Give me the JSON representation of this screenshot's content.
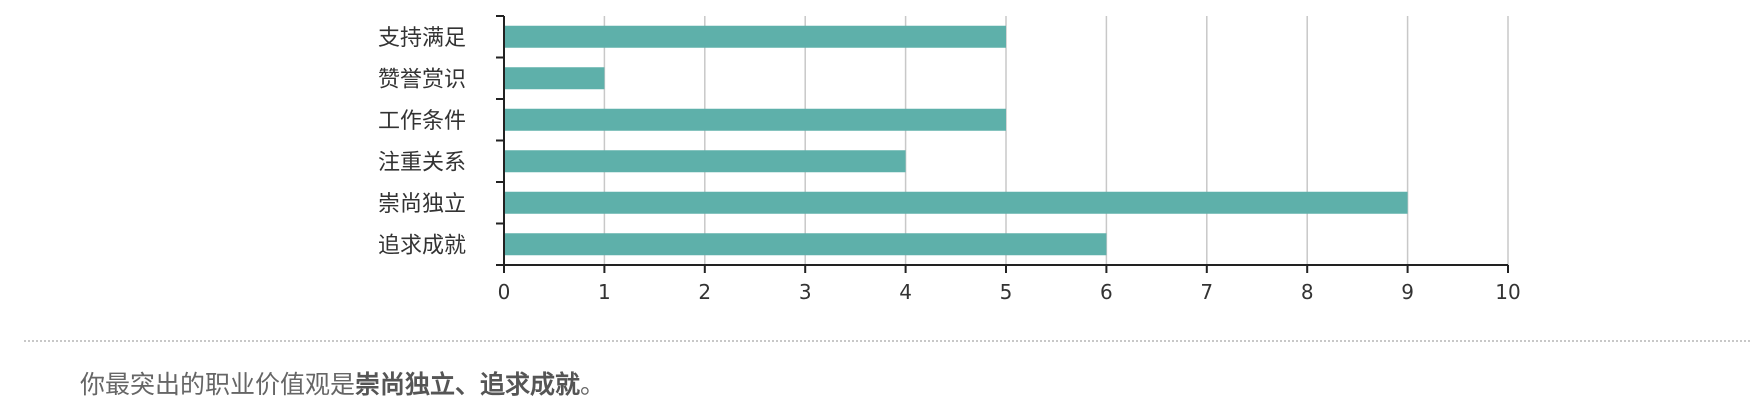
{
  "chart_data": {
    "type": "bar",
    "orientation": "horizontal",
    "categories": [
      "支持满足",
      "赞誉赏识",
      "工作条件",
      "注重关系",
      "崇尚独立",
      "追求成就"
    ],
    "values": [
      5,
      1,
      5,
      4,
      9,
      6
    ],
    "xlim": [
      0,
      10
    ],
    "x_ticks": [
      "0",
      "1",
      "2",
      "3",
      "4",
      "5",
      "6",
      "7",
      "8",
      "9",
      "10"
    ],
    "grid": true,
    "bar_color": "#5eb0aa",
    "grid_color": "#c8c8c8",
    "axis_color": "#222222"
  },
  "summary": {
    "prefix": "你最突出的职业价值观是",
    "highlight": "崇尚独立、追求成就",
    "suffix": "。"
  }
}
